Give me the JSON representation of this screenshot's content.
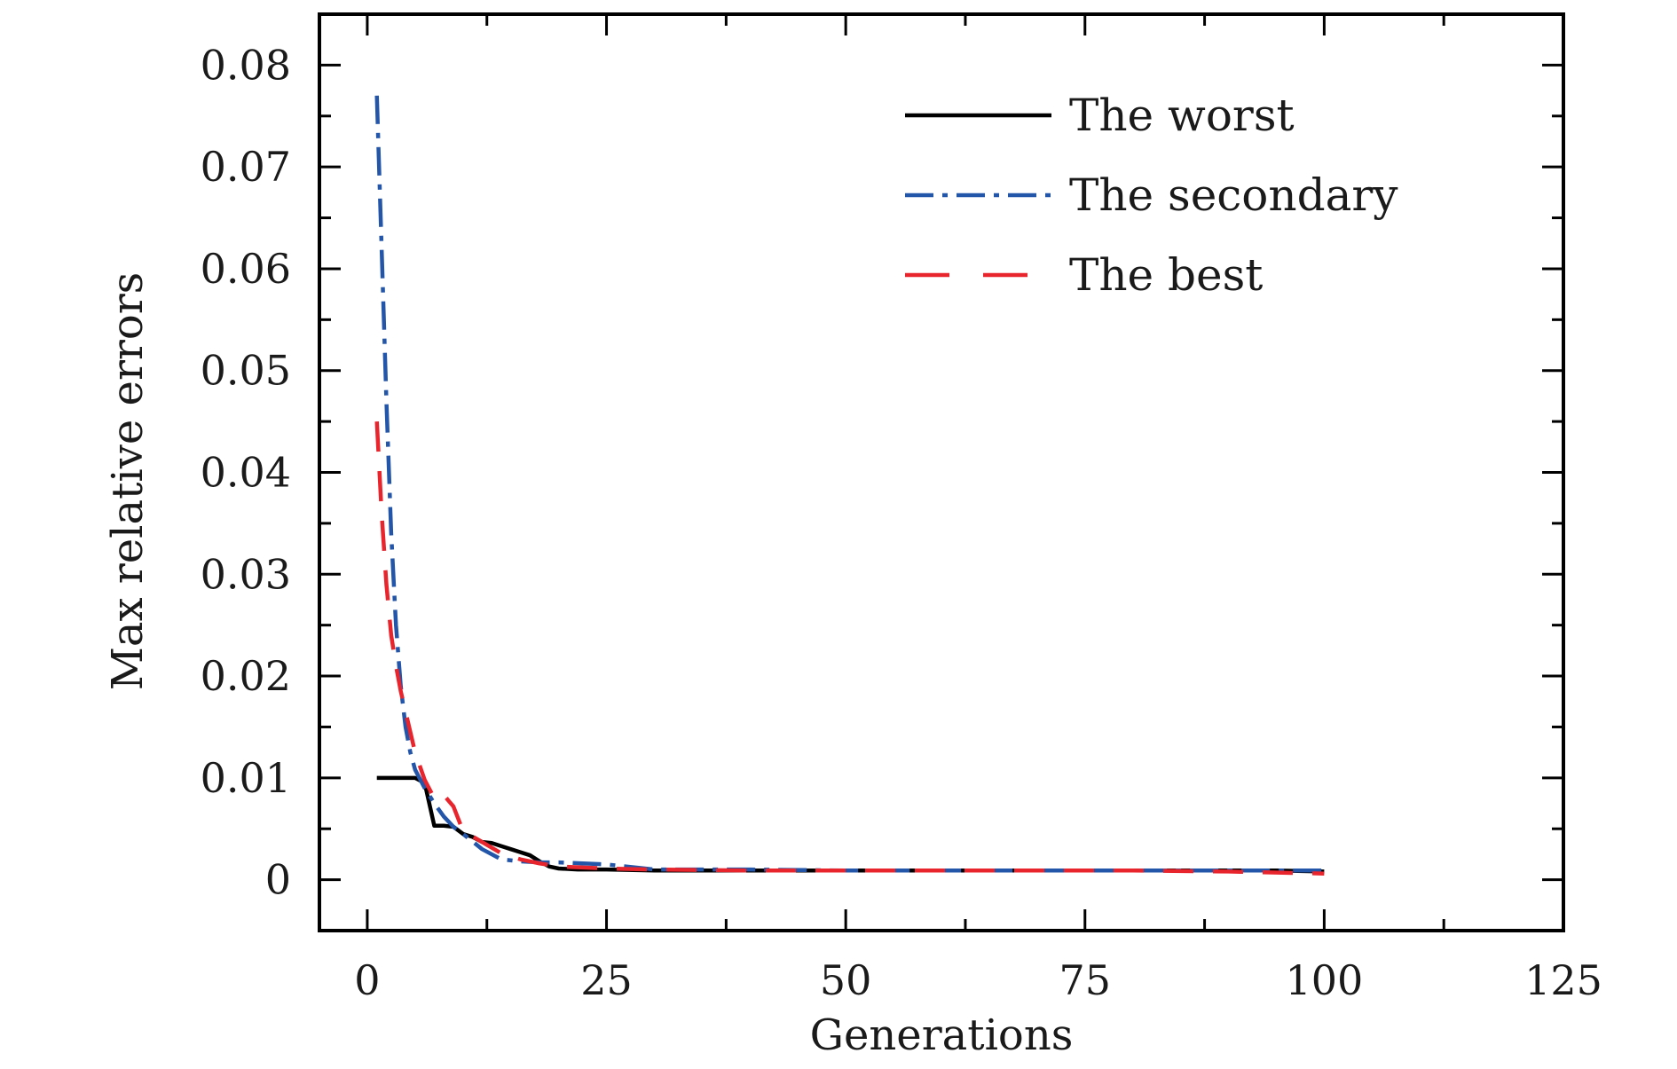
{
  "chart_data": {
    "type": "line",
    "title": "",
    "xlabel": "Generations",
    "ylabel": "Max relative errors",
    "xlim": [
      -5,
      125
    ],
    "ylim": [
      -0.005,
      0.085
    ],
    "x_ticks": [
      0,
      25,
      50,
      75,
      100,
      125
    ],
    "x_tick_labels": [
      "0",
      "25",
      "50",
      "75",
      "100",
      "125"
    ],
    "y_ticks": [
      0,
      0.01,
      0.02,
      0.03,
      0.04,
      0.05,
      0.06,
      0.07,
      0.08
    ],
    "y_tick_labels": [
      "0",
      "0.01",
      "0.02",
      "0.03",
      "0.04",
      "0.05",
      "0.06",
      "0.07",
      "0.08"
    ],
    "grid": false,
    "legend_position": "top-right",
    "series": [
      {
        "name": "The worst",
        "color": "#000000",
        "style": "solid",
        "x": [
          1,
          2,
          3,
          4,
          5,
          6,
          7,
          8,
          9,
          10,
          11,
          12,
          13,
          14,
          15,
          16,
          17,
          18,
          19,
          20,
          22,
          25,
          30,
          40,
          50,
          60,
          70,
          80,
          90,
          95,
          100
        ],
        "y": [
          0.01,
          0.01,
          0.01,
          0.01,
          0.01,
          0.0095,
          0.0053,
          0.0053,
          0.0052,
          0.0045,
          0.0042,
          0.0037,
          0.0036,
          0.0033,
          0.003,
          0.0027,
          0.0024,
          0.0018,
          0.0013,
          0.0011,
          0.001,
          0.001,
          0.0009,
          0.0009,
          0.0009,
          0.0009,
          0.0009,
          0.0009,
          0.0009,
          0.0009,
          0.0008
        ]
      },
      {
        "name": "The secondary",
        "color": "#2355a8",
        "style": "dashdot",
        "x": [
          1,
          1.5,
          2,
          2.5,
          3,
          3.5,
          4,
          4.5,
          5,
          6,
          7,
          8,
          9,
          10,
          12,
          14,
          16,
          18,
          20,
          25,
          30,
          40,
          50,
          60,
          70,
          80,
          90,
          100
        ],
        "y": [
          0.077,
          0.062,
          0.047,
          0.034,
          0.025,
          0.019,
          0.015,
          0.0125,
          0.0108,
          0.009,
          0.0075,
          0.0062,
          0.0052,
          0.0045,
          0.003,
          0.002,
          0.0018,
          0.0017,
          0.0017,
          0.0015,
          0.001,
          0.001,
          0.0009,
          0.0009,
          0.0009,
          0.0009,
          0.0009,
          0.0009
        ]
      },
      {
        "name": "The best",
        "color": "#e8252d",
        "style": "dashed",
        "x": [
          1,
          1.5,
          2,
          2.5,
          3,
          3.5,
          4,
          4.5,
          5,
          6,
          7,
          8,
          9,
          10,
          12,
          14,
          16,
          18,
          20,
          25,
          30,
          40,
          50,
          60,
          70,
          80,
          90,
          100
        ],
        "y": [
          0.045,
          0.036,
          0.029,
          0.024,
          0.021,
          0.0185,
          0.0165,
          0.0145,
          0.0125,
          0.0098,
          0.008,
          0.0083,
          0.0072,
          0.0048,
          0.0037,
          0.0026,
          0.002,
          0.0016,
          0.0013,
          0.0011,
          0.001,
          0.0009,
          0.0009,
          0.0009,
          0.0009,
          0.0009,
          0.0008,
          0.0006
        ]
      }
    ]
  }
}
